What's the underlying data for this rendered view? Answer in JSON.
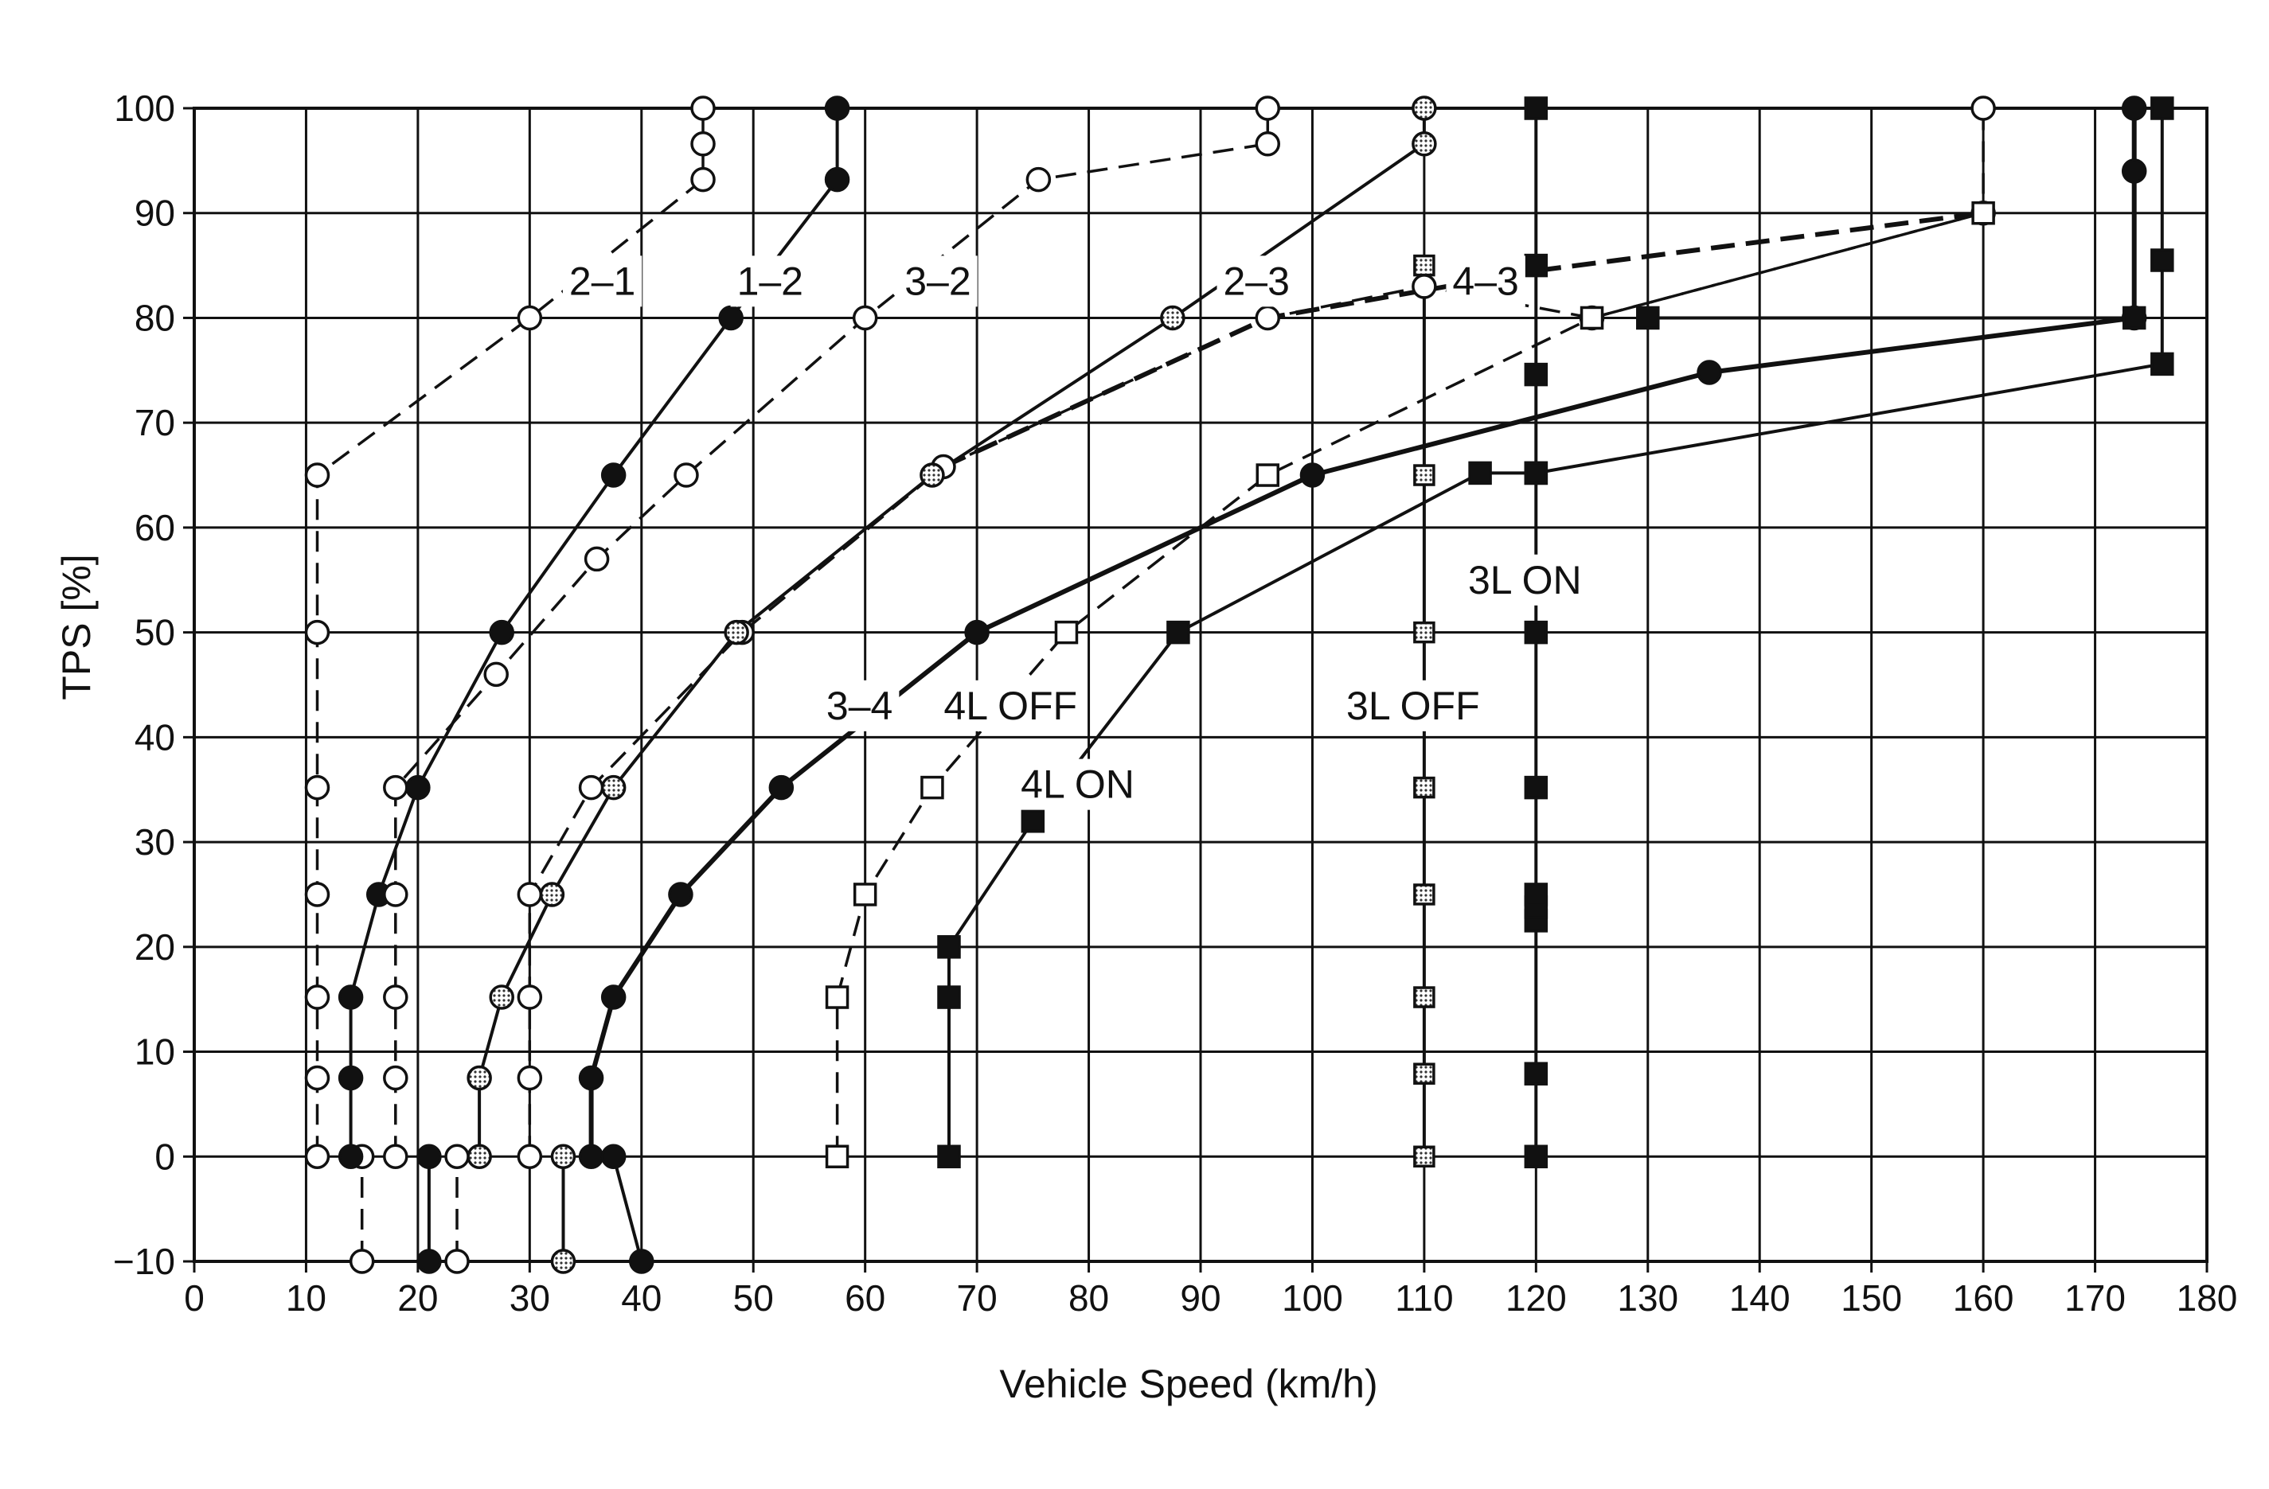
{
  "chart_data": {
    "type": "line",
    "xlabel": "Vehicle Speed (km/h)",
    "ylabel": "TPS [%]",
    "xlim": [
      0,
      180
    ],
    "ylim": [
      -10,
      100
    ],
    "xticks": [
      0,
      10,
      20,
      30,
      40,
      50,
      60,
      70,
      80,
      90,
      100,
      110,
      120,
      130,
      140,
      150,
      160,
      170,
      180
    ],
    "yticks": [
      -10,
      0,
      10,
      20,
      30,
      40,
      50,
      60,
      70,
      80,
      90,
      100
    ],
    "xtick_labels": [
      "0",
      "10",
      "20",
      "30",
      "40",
      "50",
      "60",
      "70",
      "80",
      "90",
      "100",
      "110",
      "120",
      "130",
      "140",
      "150",
      "160",
      "170",
      "180"
    ],
    "ytick_labels": [
      "−10",
      "0",
      "10",
      "20",
      "30",
      "40",
      "50",
      "60",
      "70",
      "80",
      "90",
      "100"
    ],
    "grid": true,
    "colors": {
      "line": "#111111",
      "open_fill": "#ffffff",
      "dotted_fill": "#c4c4c4",
      "solid_fill": "#111111"
    },
    "series": [
      {
        "name": "2–1",
        "style": "dashed",
        "marker": "circle-open",
        "points": [
          [
            11,
            0
          ],
          [
            11,
            7.5
          ],
          [
            11,
            15.2
          ],
          [
            11,
            25
          ],
          [
            11,
            35.2
          ],
          [
            11,
            50
          ],
          [
            11,
            65
          ],
          [
            30,
            80
          ],
          [
            45.5,
            93.2
          ],
          [
            45.5,
            96.6
          ],
          [
            45.5,
            100
          ]
        ]
      },
      {
        "name": "2–1",
        "style": "dashed",
        "marker": "circle-open",
        "points": [
          [
            15,
            -10
          ],
          [
            15,
            0
          ]
        ]
      },
      {
        "name": "1–2",
        "style": "solid",
        "marker": "circle-solid",
        "points": [
          [
            14,
            0
          ],
          [
            14,
            7.5
          ],
          [
            14,
            15.2
          ],
          [
            16.5,
            25
          ],
          [
            20,
            35.2
          ],
          [
            27.5,
            50
          ],
          [
            37.5,
            65
          ],
          [
            48,
            80
          ],
          [
            57.5,
            93.2
          ],
          [
            57.5,
            100
          ]
        ]
      },
      {
        "name": "1–2",
        "style": "solid",
        "marker": "circle-solid",
        "points": [
          [
            21,
            -10
          ],
          [
            21,
            0
          ]
        ]
      },
      {
        "name": "3–2",
        "style": "dashed",
        "marker": "circle-open",
        "points": [
          [
            18,
            0
          ],
          [
            18,
            7.5
          ],
          [
            18,
            15.2
          ],
          [
            18,
            25
          ],
          [
            18,
            35.2
          ],
          [
            27,
            46
          ],
          [
            36,
            57
          ],
          [
            44,
            65
          ],
          [
            60,
            80
          ],
          [
            75.5,
            93.2
          ],
          [
            96,
            96.6
          ],
          [
            96,
            100
          ]
        ]
      },
      {
        "name": "3–2",
        "style": "dashed",
        "marker": "circle-open",
        "points": [
          [
            23.5,
            -10
          ],
          [
            23.5,
            0
          ]
        ]
      },
      {
        "name": "3–2",
        "style": "dashed",
        "marker": "circle-open",
        "points": [
          [
            30,
            0
          ],
          [
            30,
            7.5
          ],
          [
            30,
            15.2
          ],
          [
            30,
            25
          ],
          [
            35.5,
            35.2
          ],
          [
            49,
            50
          ],
          [
            67,
            65.8
          ],
          [
            96,
            80
          ],
          [
            110,
            83
          ],
          [
            125,
            80
          ],
          [
            160,
            90
          ],
          [
            160,
            100
          ]
        ]
      },
      {
        "name": "2–3",
        "style": "solid",
        "marker": "circle-dotted",
        "points": [
          [
            25.5,
            0
          ],
          [
            25.5,
            7.5
          ],
          [
            27.5,
            15.2
          ],
          [
            32,
            25
          ],
          [
            37.5,
            35.2
          ],
          [
            48.5,
            50
          ],
          [
            66,
            65
          ],
          [
            87.5,
            80
          ],
          [
            110,
            96.6
          ],
          [
            110,
            100
          ]
        ]
      },
      {
        "name": "2–3",
        "style": "solid",
        "marker": "circle-dotted",
        "points": [
          [
            33,
            -10
          ],
          [
            33,
            0
          ]
        ]
      },
      {
        "name": "4–3",
        "style": "dashed-bold",
        "marker": "none",
        "points": [
          [
            67,
            65.8
          ],
          [
            96,
            80
          ],
          [
            120,
            84.5
          ],
          [
            160,
            90
          ]
        ]
      },
      {
        "name": "3–4",
        "style": "solid-bold",
        "marker": "circle-solid",
        "points": [
          [
            35.5,
            0
          ],
          [
            35.5,
            7.5
          ],
          [
            37.5,
            15.2
          ],
          [
            43.5,
            25
          ],
          [
            52.5,
            35.2
          ],
          [
            70,
            50
          ],
          [
            100,
            65
          ],
          [
            135.5,
            74.8
          ],
          [
            173.5,
            80
          ],
          [
            173.5,
            94
          ],
          [
            173.5,
            100
          ]
        ]
      },
      {
        "name": "3–4",
        "style": "solid",
        "marker": "circle-solid",
        "points": [
          [
            37.5,
            0
          ],
          [
            40,
            -10
          ]
        ]
      },
      {
        "name": "4L OFF",
        "style": "dashed",
        "marker": "square-open",
        "points": [
          [
            57.5,
            0
          ],
          [
            57.5,
            15.2
          ],
          [
            60,
            25
          ],
          [
            66,
            35.2
          ],
          [
            78,
            50
          ],
          [
            96,
            65
          ],
          [
            125,
            80
          ],
          [
            160,
            90
          ]
        ]
      },
      {
        "name": "4L ON",
        "style": "solid",
        "marker": "square-solid",
        "points": [
          [
            67.5,
            0
          ],
          [
            67.5,
            15.2
          ],
          [
            67.5,
            20
          ],
          [
            75,
            32
          ],
          [
            88,
            50
          ],
          [
            115,
            65.2
          ],
          [
            120,
            65.2
          ],
          [
            176,
            75.6
          ],
          [
            176,
            85.5
          ],
          [
            176,
            100
          ]
        ]
      },
      {
        "name": "3L OFF",
        "style": "solid",
        "marker": "square-dotted",
        "points": [
          [
            110,
            0
          ],
          [
            110,
            7.9
          ],
          [
            110,
            15.2
          ],
          [
            110,
            25
          ],
          [
            110,
            35.2
          ],
          [
            110,
            50
          ],
          [
            110,
            65
          ],
          [
            110,
            85
          ]
        ]
      },
      {
        "name": "3L ON",
        "style": "solid",
        "marker": "square-solid",
        "points": [
          [
            120,
            0
          ],
          [
            120,
            7.9
          ],
          [
            120,
            22.5
          ],
          [
            120,
            23.8
          ],
          [
            120,
            25
          ],
          [
            120,
            35.2
          ],
          [
            120,
            50
          ],
          [
            120,
            65.2
          ],
          [
            120,
            74.6
          ],
          [
            120,
            85
          ],
          [
            120,
            100
          ]
        ]
      },
      {
        "name": "3L ON",
        "style": "solid",
        "marker": "square-solid",
        "points": [
          [
            130,
            80
          ],
          [
            173.5,
            80
          ]
        ]
      }
    ],
    "annotations": [
      {
        "text": "2–1",
        "x": 36.5,
        "y": 83.5
      },
      {
        "text": "1–2",
        "x": 51.5,
        "y": 83.5
      },
      {
        "text": "3–2",
        "x": 66.5,
        "y": 83.5
      },
      {
        "text": "2–3",
        "x": 95,
        "y": 83.5
      },
      {
        "text": "4–3",
        "x": 115.5,
        "y": 83.5
      },
      {
        "text": "3L ON",
        "x": 119,
        "y": 55
      },
      {
        "text": "3–4",
        "x": 59.5,
        "y": 43
      },
      {
        "text": "4L OFF",
        "x": 73,
        "y": 43
      },
      {
        "text": "3L OFF",
        "x": 109,
        "y": 43
      },
      {
        "text": "4L ON",
        "x": 79,
        "y": 35.5
      }
    ]
  }
}
